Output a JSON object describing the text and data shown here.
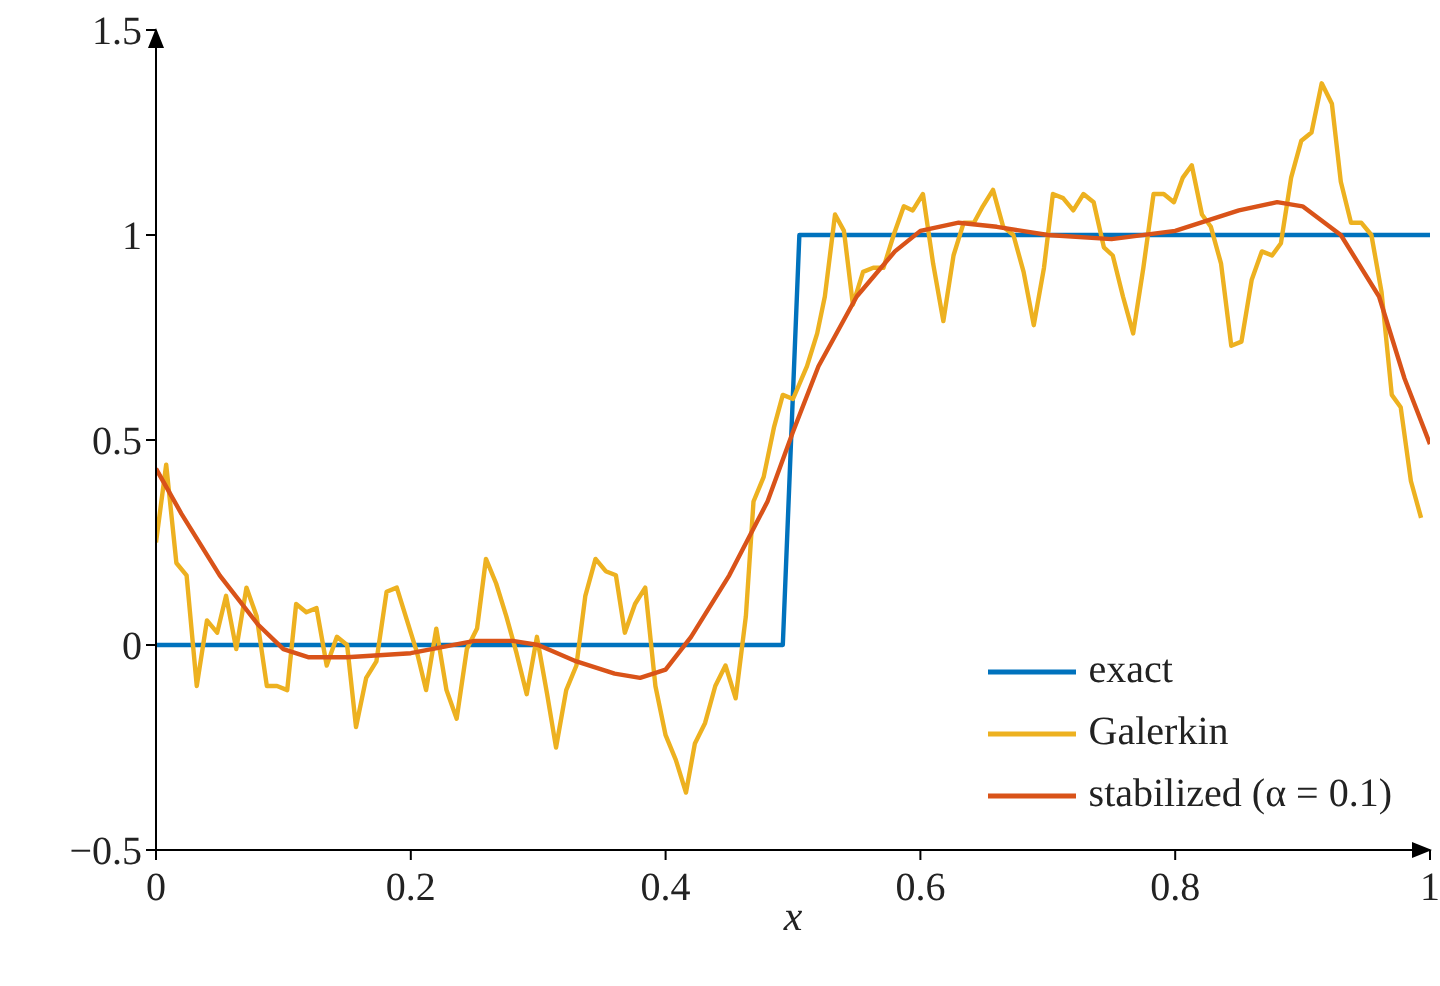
{
  "chart_data": {
    "type": "line",
    "xlabel": "x",
    "xlim": [
      0,
      1
    ],
    "xticks": [
      0,
      0.2,
      0.4,
      0.6,
      0.8,
      1
    ],
    "ylim": [
      -0.5,
      1.5
    ],
    "yticks": [
      -0.5,
      0,
      0.5,
      1,
      1.5
    ],
    "grid": false,
    "legend": "bottom right",
    "marker": "none",
    "line_style": "solid",
    "series": [
      {
        "name": "exact",
        "color": "#0072bd",
        "x": [
          0,
          0.492,
          0.505,
          1
        ],
        "values": [
          0,
          0,
          1,
          1
        ]
      },
      {
        "name": "Galerkin",
        "color": "#edb120",
        "x": [
          0,
          0.008,
          0.016,
          0.024,
          0.032,
          0.04,
          0.048,
          0.055,
          0.063,
          0.071,
          0.079,
          0.087,
          0.095,
          0.103,
          0.11,
          0.118,
          0.126,
          0.134,
          0.142,
          0.15,
          0.157,
          0.165,
          0.173,
          0.181,
          0.189,
          0.197,
          0.205,
          0.212,
          0.22,
          0.228,
          0.236,
          0.244,
          0.252,
          0.259,
          0.267,
          0.275,
          0.283,
          0.291,
          0.299,
          0.307,
          0.314,
          0.322,
          0.33,
          0.337,
          0.345,
          0.353,
          0.361,
          0.368,
          0.376,
          0.384,
          0.392,
          0.4,
          0.408,
          0.416,
          0.423,
          0.431,
          0.439,
          0.447,
          0.455,
          0.463,
          0.469,
          0.477,
          0.485,
          0.492,
          0.5,
          0.511,
          0.519,
          0.525,
          0.533,
          0.54,
          0.547,
          0.555,
          0.563,
          0.571,
          0.579,
          0.587,
          0.594,
          0.602,
          0.61,
          0.618,
          0.626,
          0.634,
          0.642,
          0.649,
          0.657,
          0.665,
          0.673,
          0.681,
          0.689,
          0.697,
          0.704,
          0.712,
          0.72,
          0.728,
          0.736,
          0.744,
          0.751,
          0.759,
          0.767,
          0.775,
          0.783,
          0.791,
          0.799,
          0.806,
          0.813,
          0.821,
          0.828,
          0.836,
          0.844,
          0.852,
          0.86,
          0.868,
          0.876,
          0.883,
          0.891,
          0.899,
          0.907,
          0.915,
          0.923,
          0.93,
          0.938,
          0.946,
          0.954,
          0.962,
          0.97,
          0.977,
          0.985,
          0.993
        ],
        "values": [
          0.25,
          0.44,
          0.2,
          0.17,
          -0.1,
          0.06,
          0.03,
          0.12,
          -0.01,
          0.14,
          0.07,
          -0.1,
          -0.1,
          -0.11,
          0.1,
          0.08,
          0.09,
          -0.05,
          0.02,
          0,
          -0.2,
          -0.08,
          -0.04,
          0.13,
          0.14,
          0.06,
          -0.02,
          -0.11,
          0.04,
          -0.11,
          -0.18,
          -0.01,
          0.04,
          0.21,
          0.15,
          0.07,
          -0.02,
          -0.12,
          0.02,
          -0.12,
          -0.25,
          -0.11,
          -0.05,
          0.12,
          0.21,
          0.18,
          0.17,
          0.03,
          0.1,
          0.14,
          -0.1,
          -0.22,
          -0.28,
          -0.36,
          -0.24,
          -0.19,
          -0.1,
          -0.05,
          -0.13,
          0.07,
          0.35,
          0.41,
          0.53,
          0.61,
          0.6,
          0.68,
          0.76,
          0.85,
          1.05,
          1.01,
          0.83,
          0.91,
          0.92,
          0.92,
          1,
          1.07,
          1.06,
          1.1,
          0.93,
          0.79,
          0.95,
          1.03,
          1.03,
          1.07,
          1.11,
          1.02,
          1,
          0.91,
          0.78,
          0.92,
          1.1,
          1.09,
          1.06,
          1.1,
          1.08,
          0.97,
          0.95,
          0.85,
          0.76,
          0.92,
          1.1,
          1.1,
          1.08,
          1.14,
          1.17,
          1.05,
          1.02,
          0.93,
          0.73,
          0.74,
          0.89,
          0.96,
          0.95,
          0.98,
          1.14,
          1.23,
          1.25,
          1.37,
          1.32,
          1.13,
          1.03,
          1.03,
          1,
          0.86,
          0.61,
          0.58,
          0.4,
          0.31
        ]
      },
      {
        "name": "stabilized (α = 0.1)",
        "color": "#d95319",
        "x": [
          0,
          0.02,
          0.05,
          0.08,
          0.1,
          0.12,
          0.15,
          0.2,
          0.25,
          0.28,
          0.3,
          0.33,
          0.36,
          0.38,
          0.4,
          0.42,
          0.45,
          0.48,
          0.5,
          0.52,
          0.55,
          0.58,
          0.6,
          0.63,
          0.66,
          0.7,
          0.75,
          0.8,
          0.85,
          0.88,
          0.9,
          0.93,
          0.96,
          0.98,
          1
        ],
        "values": [
          0.43,
          0.32,
          0.17,
          0.05,
          -0.01,
          -0.03,
          -0.03,
          -0.02,
          0.01,
          0.01,
          0,
          -0.04,
          -0.07,
          -0.08,
          -0.06,
          0.02,
          0.17,
          0.35,
          0.52,
          0.68,
          0.85,
          0.96,
          1.01,
          1.03,
          1.02,
          1,
          0.99,
          1.01,
          1.06,
          1.08,
          1.07,
          1,
          0.85,
          0.65,
          0.49
        ]
      }
    ]
  }
}
